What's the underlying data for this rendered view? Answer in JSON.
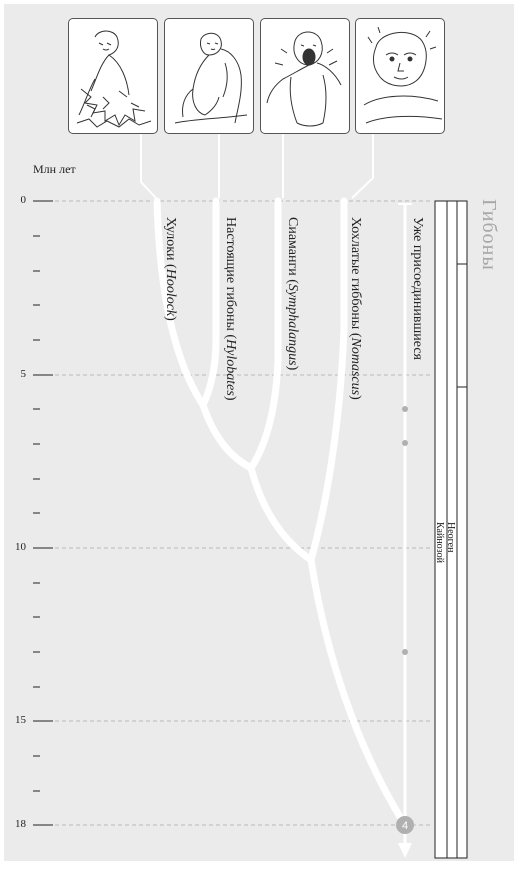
{
  "units_label": "Млн лет",
  "group_title": "Гибоны",
  "axis": {
    "major_ticks": [
      "0",
      "5",
      "10",
      "15",
      "18"
    ]
  },
  "taxa": [
    {
      "name": "Хулоки",
      "latin": "Hoolock"
    },
    {
      "name": "Настоящие гибоны",
      "latin": "Hylobates"
    },
    {
      "name": "Сиаманги",
      "latin": "Symphalangus"
    },
    {
      "name": "Хохлатые гиббоны",
      "latin": "Nomascus"
    }
  ],
  "rendezvous_label": "Уже присоединившиеся",
  "rendezvous_number": "4",
  "eras": {
    "cenozoic": "Кайнозой",
    "neogene": "Неоген"
  },
  "illustrations": [
    "hoolock-drawing",
    "hylobates-drawing",
    "symphalangus-drawing",
    "nomascus-drawing"
  ],
  "colors": {
    "panel": "#ebebeb",
    "branch": "#ffffff",
    "title": "#a6a6a6",
    "node_dot": "#b0b0b0"
  }
}
